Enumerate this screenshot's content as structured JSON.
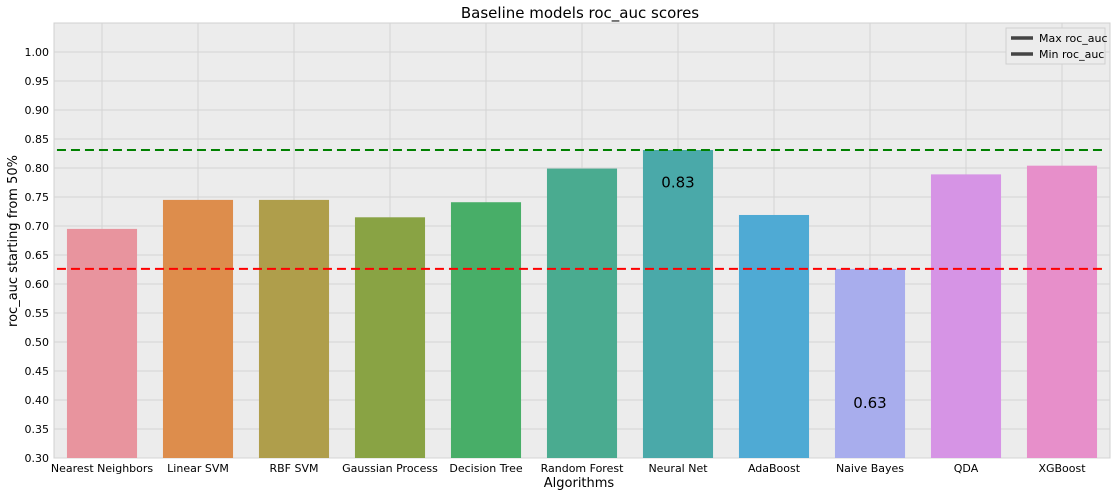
{
  "chart_data": {
    "type": "bar",
    "title": "Baseline models roc_auc scores",
    "xlabel": "Algorithms",
    "ylabel": "roc_auc starting from 50%",
    "ylim": [
      0.3,
      1.05
    ],
    "yticks": [
      "0.30",
      "0.35",
      "0.40",
      "0.45",
      "0.50",
      "0.55",
      "0.60",
      "0.65",
      "0.70",
      "0.75",
      "0.80",
      "0.85",
      "0.90",
      "0.95",
      "1.00"
    ],
    "grid": true,
    "categories": [
      "Nearest Neighbors",
      "Linear SVM",
      "RBF SVM",
      "Gaussian Process",
      "Decision Tree",
      "Random Forest",
      "Neural Net",
      "AdaBoost",
      "Naive Bayes",
      "QDA",
      "XGBoost"
    ],
    "values": [
      0.695,
      0.745,
      0.745,
      0.715,
      0.741,
      0.799,
      0.831,
      0.719,
      0.626,
      0.789,
      0.804
    ],
    "colors": [
      "#e8949e",
      "#dd8d4c",
      "#af9e4b",
      "#89a344",
      "#48ae68",
      "#4aab90",
      "#4aa9a9",
      "#4faad4",
      "#a8aded",
      "#d694e5",
      "#e78fca"
    ],
    "data_labels": [
      {
        "category": "Neural Net",
        "text": "0.83",
        "y": 0.775
      },
      {
        "category": "Naive Bayes",
        "text": "0.63",
        "y": 0.395
      }
    ],
    "reference_lines": [
      {
        "name": "Max roc_auc",
        "value": 0.831,
        "color": "#008000"
      },
      {
        "name": "Min roc_auc",
        "value": 0.626,
        "color": "#ff0000"
      }
    ],
    "legend": {
      "position": "top-right",
      "entries": [
        "Max roc_auc",
        "Min roc_auc"
      ],
      "swatch_color": "#444444"
    },
    "background": "#ececec",
    "grid_color": "#d4d4d4"
  }
}
